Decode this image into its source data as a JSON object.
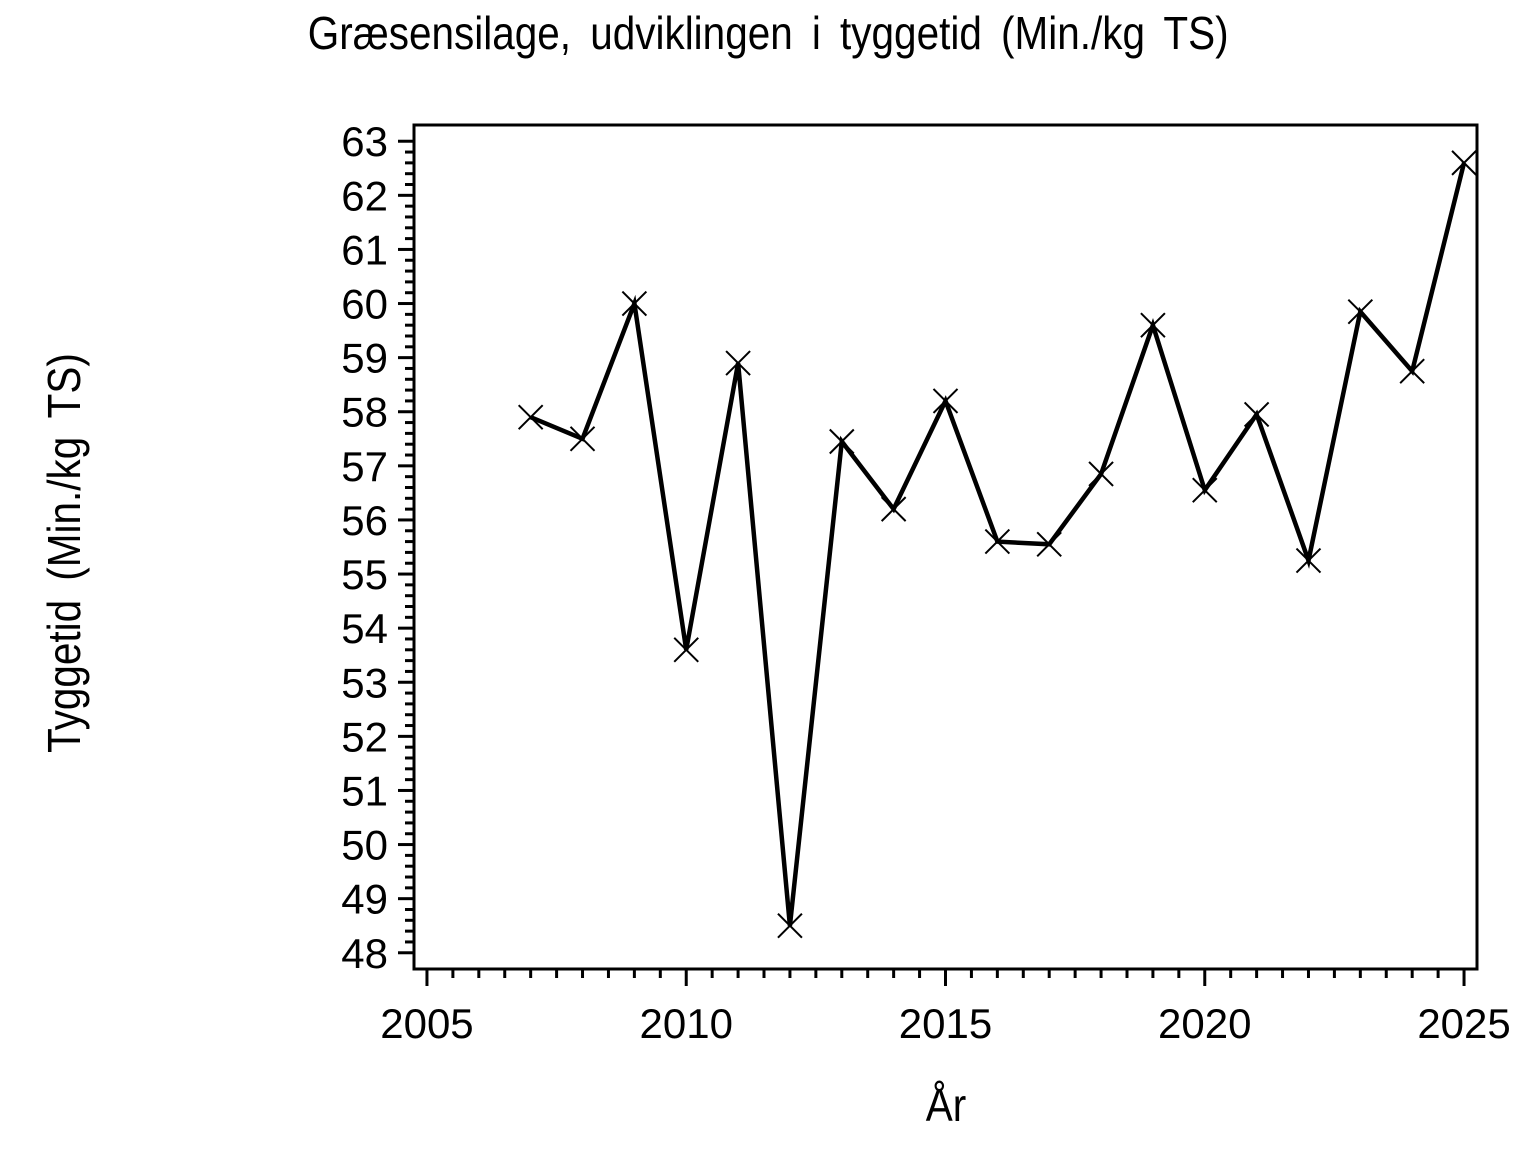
{
  "chart_data": {
    "type": "line",
    "title": "Græsensilage, udviklingen i tyggetid (Min./kg TS)",
    "xlabel": "År",
    "ylabel": "Tyggetid (Min./kg TS)",
    "x": [
      2007,
      2008,
      2009,
      2010,
      2011,
      2012,
      2013,
      2014,
      2015,
      2016,
      2017,
      2018,
      2019,
      2020,
      2021,
      2022,
      2023,
      2024,
      2025
    ],
    "values": [
      57.9,
      57.5,
      60.0,
      53.6,
      58.9,
      48.5,
      57.45,
      56.2,
      58.2,
      55.6,
      55.55,
      56.85,
      59.6,
      56.55,
      57.95,
      55.25,
      59.85,
      58.75,
      62.6
    ],
    "series_name": "Tyggetid",
    "xlim": [
      2004.75,
      2025.25
    ],
    "ylim": [
      47.7,
      63.3
    ],
    "x_major_ticks": [
      2005,
      2010,
      2015,
      2020,
      2025
    ],
    "x_minor_step": 0.5,
    "y_major_ticks": [
      48,
      49,
      50,
      51,
      52,
      53,
      54,
      55,
      56,
      57,
      58,
      59,
      60,
      61,
      62,
      63
    ],
    "y_minor_step": 0.2,
    "grid": false,
    "legend_position": "none",
    "marker": "x",
    "line_color": "#000000",
    "background_color": "#ffffff"
  }
}
